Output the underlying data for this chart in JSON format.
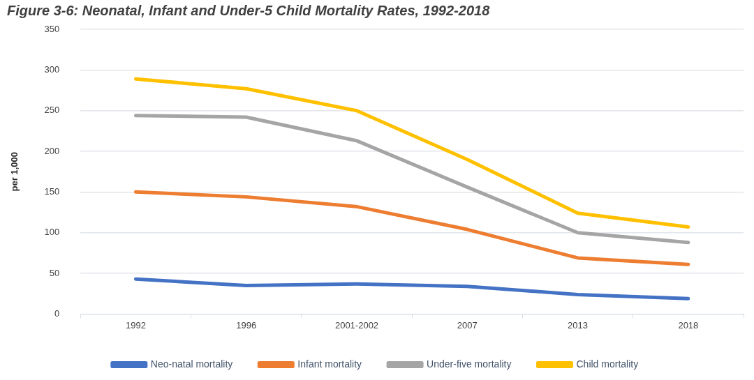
{
  "chart_data": {
    "type": "line",
    "title": "Figure 3-6: Neonatal, Infant and Under-5 Child Mortality Rates, 1992-2018",
    "ylabel": "per 1,000",
    "categories": [
      "1992",
      "1996",
      "2001-2002",
      "2007",
      "2013",
      "2018"
    ],
    "series": [
      {
        "name": "Neo-natal mortality",
        "color": "#4472c4",
        "values": [
          43,
          35,
          37,
          34,
          24,
          19
        ]
      },
      {
        "name": "Infant mortality",
        "color": "#ed7d31",
        "values": [
          150,
          144,
          132,
          104,
          69,
          61
        ]
      },
      {
        "name": "Under-five mortality",
        "color": "#a5a5a5",
        "values": [
          244,
          242,
          213,
          156,
          100,
          88
        ]
      },
      {
        "name": "Child mortality",
        "color": "#ffc000",
        "values": [
          289,
          277,
          250,
          190,
          124,
          107
        ]
      }
    ],
    "ylim": [
      0,
      350
    ],
    "yticks": [
      0,
      50,
      100,
      150,
      200,
      250,
      300,
      350
    ],
    "grid": "y",
    "legend": "bottom",
    "marker": "none",
    "line_style": "solid"
  }
}
